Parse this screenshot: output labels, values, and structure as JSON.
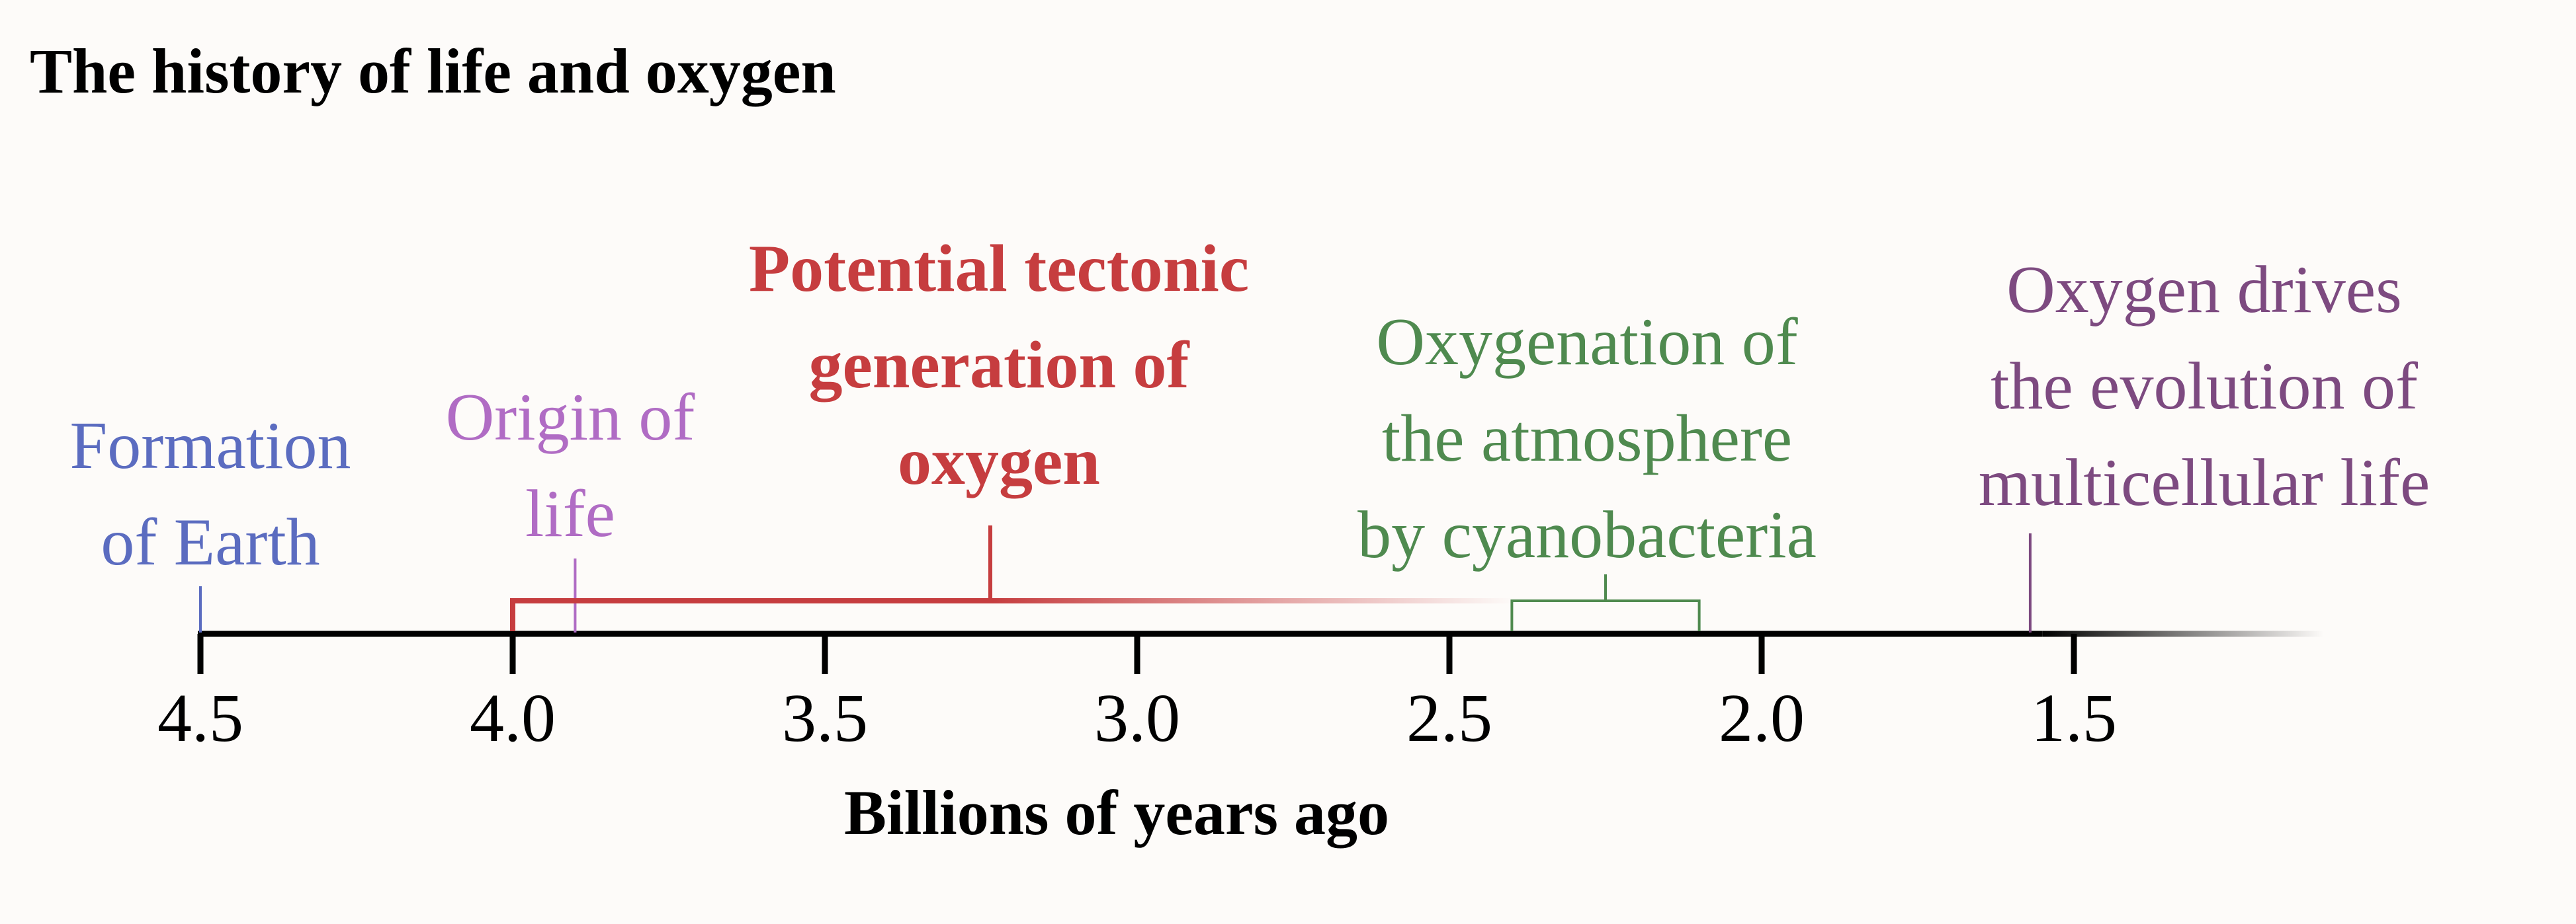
{
  "title": "The history of life and oxygen",
  "axis": {
    "label": "Billions of years ago",
    "ticks": [
      "4.5",
      "4.0",
      "3.5",
      "3.0",
      "2.5",
      "2.0",
      "1.5"
    ],
    "range": [
      4.5,
      1.1
    ],
    "direction": "decreasing to the right",
    "fade_end": true
  },
  "events": [
    {
      "id": "formation-of-earth",
      "lines": [
        "Formation",
        "of Earth"
      ],
      "value": 4.5,
      "color": "#5b6cc0",
      "bold": false,
      "marker": "line"
    },
    {
      "id": "origin-of-life",
      "lines": [
        "Origin of",
        "life"
      ],
      "value": 3.9,
      "color": "#b06cc4",
      "bold": false,
      "marker": "line"
    },
    {
      "id": "tectonic-oxygen",
      "lines": [
        "Potential tectonic",
        "generation of",
        "oxygen"
      ],
      "start": 4.0,
      "end_fades_by": 2.4,
      "color": "#c63d3f",
      "bold": true,
      "marker": "bracket"
    },
    {
      "id": "atmosphere-oxygenation",
      "lines": [
        "Oxygenation of",
        "the atmosphere",
        "by cyanobacteria"
      ],
      "start": 2.4,
      "end": 2.1,
      "color": "#4f8a4f",
      "bold": false,
      "marker": "bracket"
    },
    {
      "id": "multicellular-life",
      "lines": [
        "Oxygen drives",
        "the evolution of",
        "multicellular life"
      ],
      "value": 1.57,
      "color": "#7d4a80",
      "bold": false,
      "marker": "line"
    }
  ]
}
